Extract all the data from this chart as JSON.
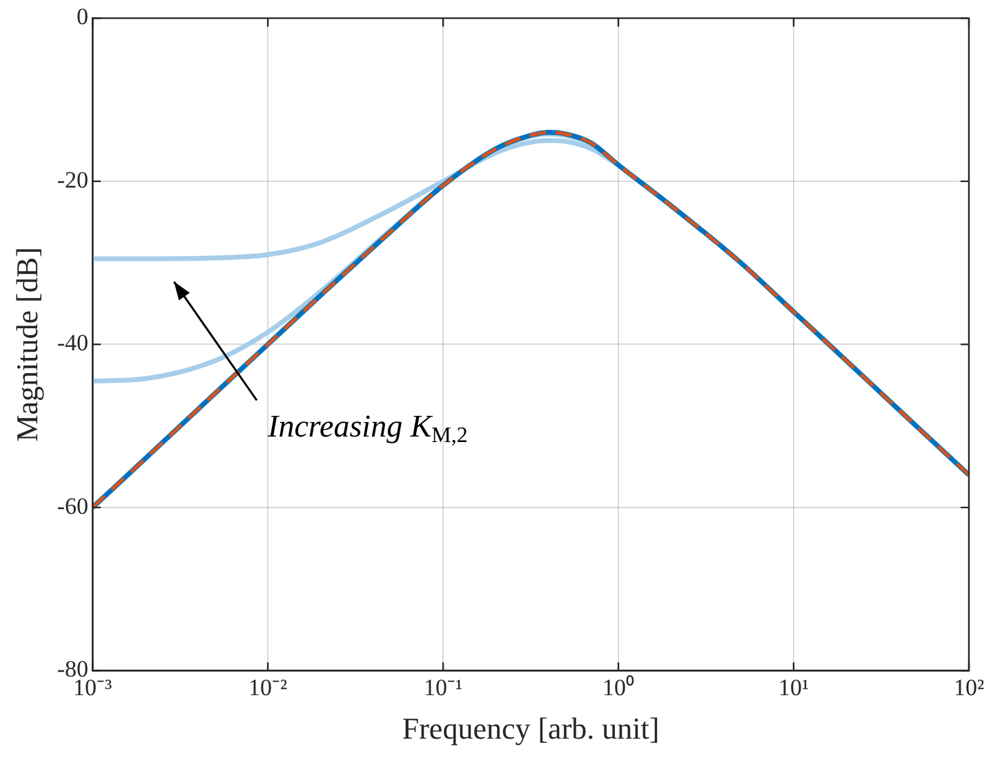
{
  "chart_data": {
    "type": "line",
    "xlabel": "Frequency [arb. unit]",
    "ylabel": "Magnitude [dB]",
    "log": "x",
    "grid": true,
    "legend": false,
    "marker": "none",
    "x": [
      0.001,
      0.002,
      0.005,
      0.01,
      0.02,
      0.05,
      0.1,
      0.2,
      0.3,
      0.4,
      0.5,
      0.7,
      1,
      2,
      5,
      10,
      20,
      50,
      100
    ],
    "series": [
      {
        "color": "#a6cde9",
        "values": [
          -29.5,
          -29.5,
          -29.4,
          -29,
          -27.5,
          -23.5,
          -20,
          -16.5,
          -15.3,
          -15,
          -15.1,
          -16,
          -18,
          null,
          null,
          null,
          null,
          null,
          null
        ]
      },
      {
        "color": "#a6cde9",
        "values": [
          -44.5,
          -44.2,
          -42,
          -38.5,
          -33.5,
          -26,
          -20.5,
          -16,
          -14.6,
          -14.2,
          -14.4,
          -15.4,
          -18,
          null,
          null,
          null,
          null,
          null,
          null
        ]
      },
      {
        "color": "#0072bd",
        "values": [
          -60,
          -54,
          -46,
          -40,
          -34,
          -26.2,
          -20.5,
          -16,
          -14.5,
          -14,
          -14.2,
          -15.3,
          -18,
          -23,
          -30,
          -36,
          -42,
          -50,
          -56
        ]
      },
      {
        "color": "#d95319",
        "line_style": "dashed",
        "values": [
          -60,
          -54,
          -46,
          -40,
          -34,
          -26.2,
          -20.5,
          -16,
          -14.5,
          -14,
          -14.2,
          -15.3,
          -18,
          -23,
          -30,
          -36,
          -42,
          -50,
          -56
        ]
      }
    ],
    "xlim": [
      0.001,
      100
    ],
    "xticks": [
      {
        "value": 0.001,
        "label": "10⁻³"
      },
      {
        "value": 0.01,
        "label": "10⁻²"
      },
      {
        "value": 0.1,
        "label": "10⁻¹"
      },
      {
        "value": 1,
        "label": "10⁰"
      },
      {
        "value": 10,
        "label": "10¹"
      },
      {
        "value": 100,
        "label": "10²"
      }
    ],
    "ylim": [
      -80,
      0
    ],
    "yticks": [
      -80,
      -60,
      -40,
      -20,
      0
    ],
    "annotations": [
      "Increasing K$_{M,2}$"
    ]
  }
}
